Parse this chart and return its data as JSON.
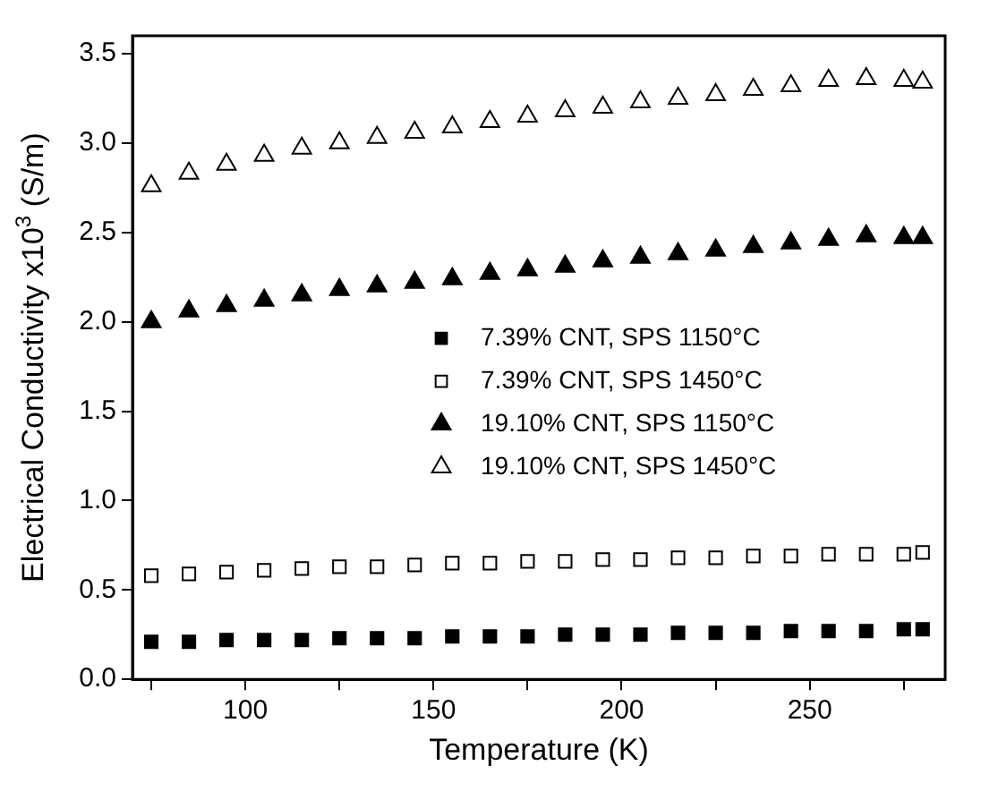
{
  "chart_data": {
    "type": "scatter",
    "xlabel": "Temperature (K)",
    "ylabel": "Electrical Conductivity x10$^{3}$ (S/m)",
    "x": [
      75,
      85,
      95,
      105,
      115,
      125,
      135,
      145,
      155,
      165,
      175,
      185,
      195,
      205,
      215,
      225,
      235,
      245,
      255,
      265,
      275,
      280
    ],
    "series": [
      {
        "name": "7.39% CNT, SPS 1150°C",
        "color": "#000000",
        "marker": "square",
        "values": [
          0.21,
          0.21,
          0.22,
          0.22,
          0.22,
          0.23,
          0.23,
          0.23,
          0.24,
          0.24,
          0.24,
          0.25,
          0.25,
          0.25,
          0.26,
          0.26,
          0.26,
          0.27,
          0.27,
          0.27,
          0.28,
          0.28
        ]
      },
      {
        "name": "7.39% CNT, SPS 1450°C",
        "color": "#000000",
        "marker": "square",
        "values": [
          0.58,
          0.59,
          0.6,
          0.61,
          0.62,
          0.63,
          0.63,
          0.64,
          0.65,
          0.65,
          0.66,
          0.66,
          0.67,
          0.67,
          0.68,
          0.68,
          0.69,
          0.69,
          0.7,
          0.7,
          0.7,
          0.71
        ]
      },
      {
        "name": "19.10% CNT, SPS 1150°C",
        "color": "#000000",
        "marker": "triangle",
        "values": [
          2.0,
          2.06,
          2.09,
          2.12,
          2.15,
          2.18,
          2.2,
          2.22,
          2.24,
          2.27,
          2.29,
          2.31,
          2.34,
          2.36,
          2.38,
          2.4,
          2.42,
          2.44,
          2.46,
          2.48,
          2.47,
          2.47
        ]
      },
      {
        "name": "19.10% CNT, SPS 1450°C",
        "color": "#000000",
        "marker": "triangle",
        "values": [
          2.76,
          2.83,
          2.88,
          2.93,
          2.97,
          3.0,
          3.03,
          3.06,
          3.09,
          3.12,
          3.15,
          3.18,
          3.2,
          3.23,
          3.25,
          3.27,
          3.3,
          3.32,
          3.35,
          3.36,
          3.35,
          3.34
        ]
      }
    ],
    "xlim": [
      70,
      286
    ],
    "xticks": [
      {
        "value": 75,
        "label": null
      },
      100,
      {
        "value": 125,
        "label": null
      },
      150,
      {
        "value": 175,
        "label": null
      },
      200,
      {
        "value": 225,
        "label": null
      },
      250,
      {
        "value": 275,
        "label": null
      }
    ],
    "ylim": [
      0,
      3.6
    ],
    "yticks": [
      {
        "value": 0,
        "label": "0.0"
      },
      {
        "value": 0.5,
        "label": "0.5"
      },
      {
        "value": 1,
        "label": "1.0"
      },
      {
        "value": 1.5,
        "label": "1.5"
      },
      {
        "value": 2,
        "label": "2.0"
      },
      {
        "value": 2.5,
        "label": "2.5"
      },
      {
        "value": 3,
        "label": "3.0"
      },
      {
        "value": 3.5,
        "label": "3.5"
      }
    ],
    "legend": "center",
    "grid": false
  }
}
